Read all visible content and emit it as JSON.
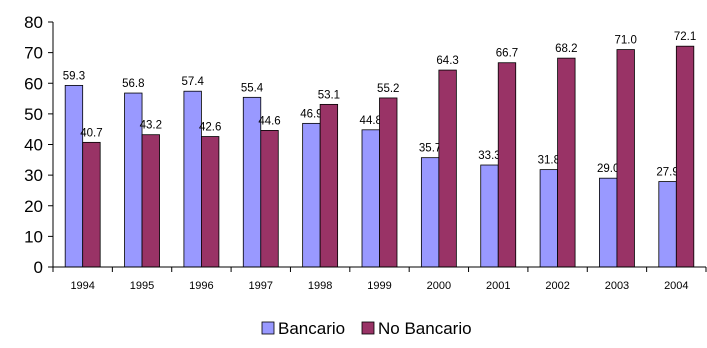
{
  "chart_data": {
    "type": "bar",
    "categories": [
      "1994",
      "1995",
      "1996",
      "1997",
      "1998",
      "1999",
      "2000",
      "2001",
      "2002",
      "2003",
      "2004"
    ],
    "series": [
      {
        "name": "Bancario",
        "color": "#9999FF",
        "values": [
          59.3,
          56.8,
          57.4,
          55.4,
          46.9,
          44.8,
          35.7,
          33.3,
          31.8,
          29.0,
          27.9
        ],
        "labels": [
          "59.3",
          "56.8",
          "57.4",
          "55.4",
          "46.9",
          "44.8",
          "35.7",
          "33.3",
          "31.8",
          "29.0",
          "27.9"
        ]
      },
      {
        "name": "No Bancario",
        "color": "#993366",
        "values": [
          40.7,
          43.2,
          42.6,
          44.6,
          53.1,
          55.2,
          64.3,
          66.7,
          68.2,
          71.0,
          72.1
        ],
        "labels": [
          "40.7",
          "43.2",
          "42.6",
          "44.6",
          "53.1",
          "55.2",
          "64.3",
          "66.7",
          "68.2",
          "71.0",
          "72.1"
        ]
      }
    ],
    "ylim": [
      0,
      80
    ],
    "yticks": [
      "0",
      "10",
      "20",
      "30",
      "40",
      "50",
      "60",
      "70",
      "80"
    ],
    "grid": false,
    "legend": "bottom",
    "title": "",
    "xlabel": "",
    "ylabel": ""
  }
}
